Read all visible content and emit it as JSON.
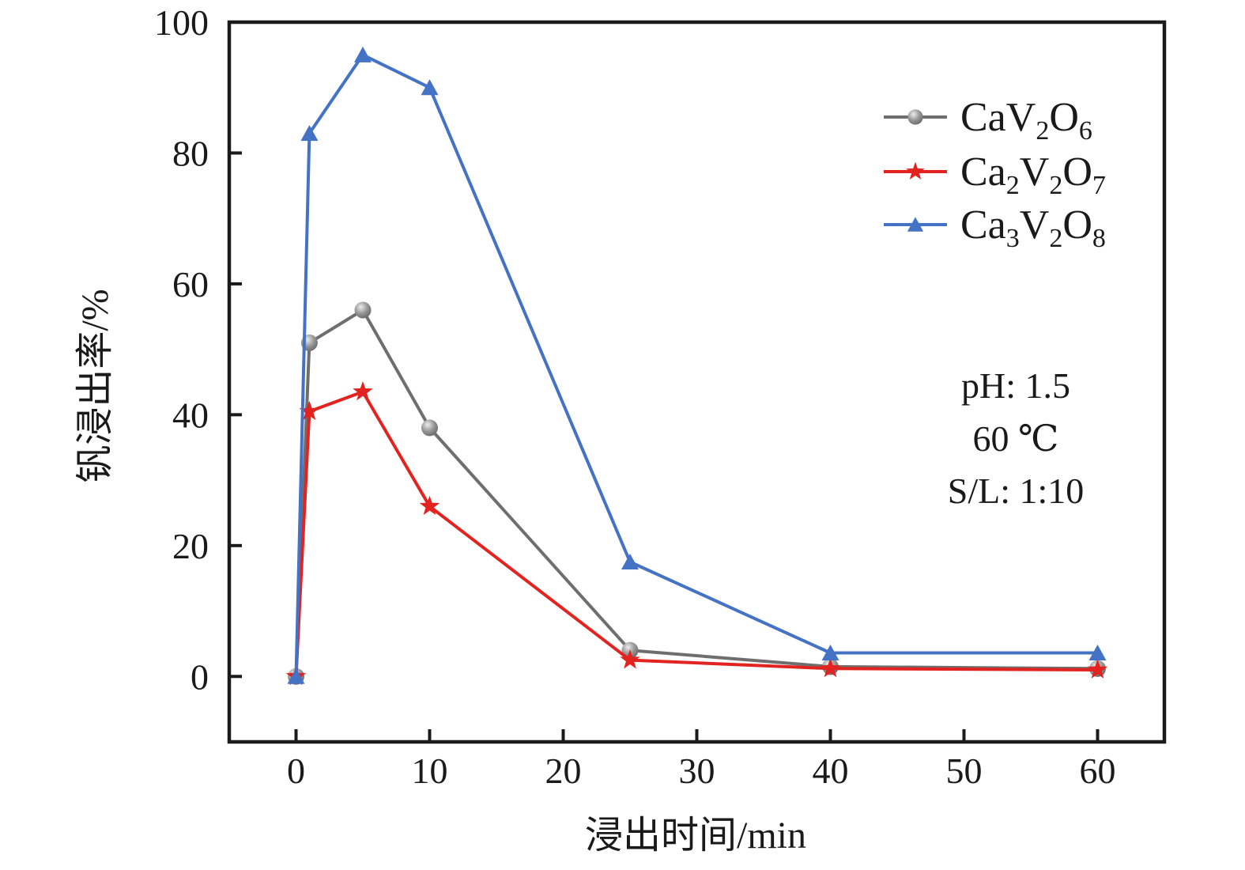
{
  "figure": {
    "background": "#ffffff",
    "frame_color": "#1a1a1a"
  },
  "chart_data": {
    "type": "line",
    "title": "",
    "xlabel": "浸出时间/min",
    "ylabel": "钒浸出率/%",
    "xlim": [
      -5,
      65
    ],
    "ylim": [
      -10,
      100
    ],
    "x_ticks": [
      0,
      10,
      20,
      30,
      40,
      50,
      60
    ],
    "y_ticks": [
      0,
      20,
      40,
      60,
      80,
      100
    ],
    "grid": false,
    "legend_position": "upper-right-inside",
    "x": [
      0,
      1,
      5,
      10,
      25,
      40,
      60
    ],
    "series": [
      {
        "name": "CaV2O6",
        "label_parts": [
          {
            "t": "CaV"
          },
          {
            "t": "2",
            "sub": true
          },
          {
            "t": "O"
          },
          {
            "t": "6",
            "sub": true
          }
        ],
        "marker": "circle",
        "color": "#6E6E6E",
        "values": [
          0,
          51,
          56,
          38,
          4,
          1.5,
          1.2
        ]
      },
      {
        "name": "Ca2V2O7",
        "label_parts": [
          {
            "t": "Ca"
          },
          {
            "t": "2",
            "sub": true
          },
          {
            "t": "V"
          },
          {
            "t": "2",
            "sub": true
          },
          {
            "t": "O"
          },
          {
            "t": "7",
            "sub": true
          }
        ],
        "marker": "star",
        "color": "#E2231F",
        "values": [
          0,
          40.5,
          43.5,
          26,
          2.5,
          1.2,
          1
        ]
      },
      {
        "name": "Ca3V2O8",
        "label_parts": [
          {
            "t": "Ca"
          },
          {
            "t": "3",
            "sub": true
          },
          {
            "t": "V"
          },
          {
            "t": "2",
            "sub": true
          },
          {
            "t": "O"
          },
          {
            "t": "8",
            "sub": true
          }
        ],
        "marker": "triangle",
        "color": "#4472C4",
        "values": [
          0,
          83,
          95,
          90,
          17.5,
          3.6,
          3.6
        ]
      }
    ],
    "annotation": {
      "lines": [
        "pH: 1.5",
        "60 ℃",
        "S/L: 1:10"
      ]
    }
  }
}
